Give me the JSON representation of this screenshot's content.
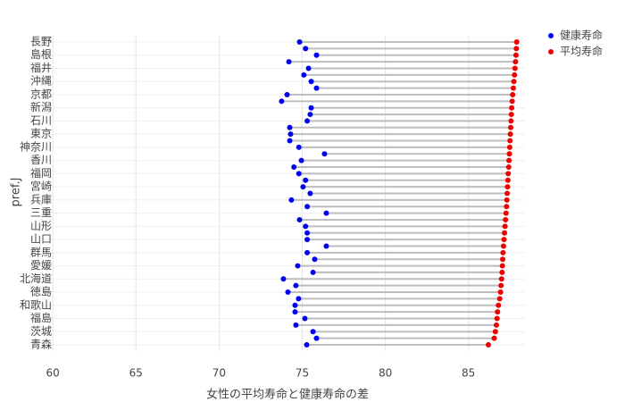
{
  "chart_data": {
    "type": "dumbbell",
    "x_label": "女性の平均寿命と健康寿命の差",
    "y_label": "pref.J",
    "categories": [
      "長野",
      null,
      "島根",
      null,
      "福井",
      null,
      "沖縄",
      null,
      "京都",
      null,
      "新潟",
      null,
      "石川",
      null,
      "東京",
      null,
      "神奈川",
      null,
      "香川",
      null,
      "福岡",
      null,
      "宮崎",
      null,
      "兵庫",
      null,
      "三重",
      null,
      "山形",
      null,
      "山口",
      null,
      "群馬",
      null,
      "愛媛",
      null,
      "北海道",
      null,
      "徳島",
      null,
      "和歌山",
      null,
      "福島",
      null,
      "茨城",
      null,
      "青森"
    ],
    "series": [
      {
        "name": "健康寿命",
        "color": "#0000ee",
        "values": [
          74.84,
          75.2,
          75.86,
          74.2,
          75.38,
          75.1,
          75.54,
          75.86,
          74.09,
          73.76,
          75.54,
          75.48,
          75.3,
          74.25,
          74.3,
          74.25,
          74.8,
          76.34,
          74.95,
          74.5,
          74.8,
          75.2,
          75.05,
          75.48,
          74.35,
          75.3,
          76.45,
          74.84,
          75.2,
          75.3,
          75.3,
          76.45,
          75.3,
          75.75,
          74.73,
          75.65,
          73.87,
          74.62,
          74.14,
          74.78,
          74.57,
          74.57,
          75.16,
          74.62,
          75.65,
          75.86,
          75.27
        ]
      },
      {
        "name": "平均寿命",
        "color": "#ee0000",
        "values": [
          87.9,
          87.88,
          87.86,
          87.83,
          87.8,
          87.77,
          87.73,
          87.7,
          87.66,
          87.63,
          87.6,
          87.58,
          87.56,
          87.54,
          87.52,
          87.5,
          87.48,
          87.46,
          87.44,
          87.42,
          87.39,
          87.37,
          87.35,
          87.33,
          87.31,
          87.29,
          87.26,
          87.23,
          87.2,
          87.17,
          87.14,
          87.11,
          87.08,
          87.06,
          87.04,
          87.02,
          86.99,
          86.96,
          86.93,
          86.88,
          86.8,
          86.75,
          86.72,
          86.68,
          86.62,
          86.55,
          86.2
        ]
      }
    ],
    "xlim": [
      59.4,
      88.4
    ],
    "xticks": [
      60,
      65,
      70,
      75,
      80,
      85
    ],
    "grid": true,
    "legend_position": "top-right"
  }
}
